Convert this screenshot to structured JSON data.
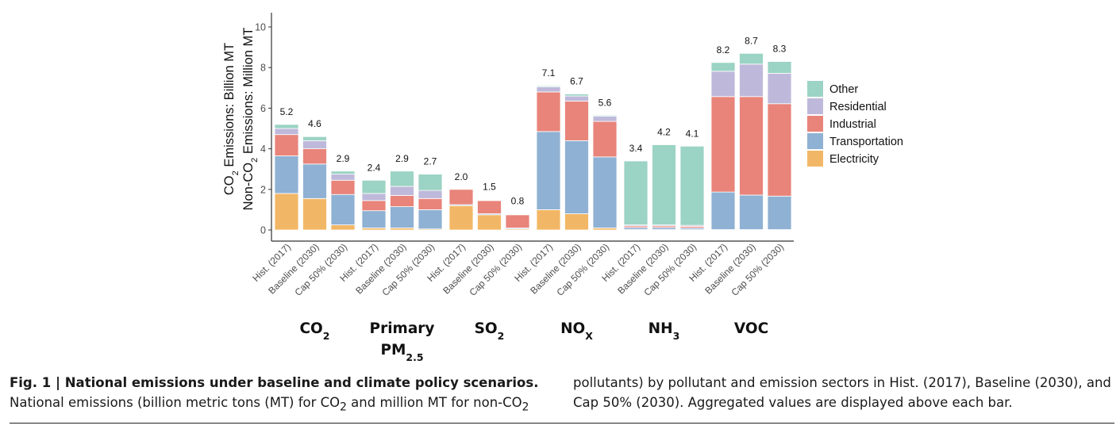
{
  "figure": {
    "label": "Fig. 1 | ",
    "title": "National emissions under baseline and climate policy scenarios.",
    "caption_part1": " National emissions (billion metric tons (MT) for CO",
    "caption_sub1": "2",
    "caption_part2": " and million MT for non-CO",
    "caption_sub2": "2",
    "caption_part3": " pollutants) by pollutant and emission sectors in Hist. (2017), Baseline (2030), and Cap 50% (2030). Aggregated values are displayed above each bar."
  },
  "chart_data": {
    "type": "bar",
    "stacked": true,
    "ylabel_line1": "CO2 Emissions: Billion MT",
    "ylabel_line2": "Non-CO2 Emissions: Million MT",
    "ylim": [
      0,
      10.5
    ],
    "yticks": [
      0,
      2,
      4,
      6,
      8,
      10
    ],
    "scenarios": [
      "Hist. (2017)",
      "Baseline (2030)",
      "Cap 50% (2030)"
    ],
    "colors": {
      "Electricity": "#F2B766",
      "Transportation": "#8FB1D3",
      "Industrial": "#E8847A",
      "Residential": "#BEB9DA",
      "Other": "#9BD3C4"
    },
    "legend": [
      "Other",
      "Residential",
      "Industrial",
      "Transportation",
      "Electricity"
    ],
    "legend_position": "right",
    "grid": false,
    "groups": [
      {
        "pollutant": "CO2",
        "label_main": "CO",
        "label_sub": "2",
        "label_line2": "",
        "label_line2_sub": "",
        "bars": [
          {
            "total": "5.2",
            "Electricity": 1.8,
            "Transportation": 1.85,
            "Industrial": 1.05,
            "Residential": 0.3,
            "Other": 0.2
          },
          {
            "total": "4.6",
            "Electricity": 1.55,
            "Transportation": 1.7,
            "Industrial": 0.75,
            "Residential": 0.4,
            "Other": 0.2
          },
          {
            "total": "2.9",
            "Electricity": 0.25,
            "Transportation": 1.5,
            "Industrial": 0.7,
            "Residential": 0.3,
            "Other": 0.15
          }
        ]
      },
      {
        "pollutant": "Primary PM2.5",
        "label_main": "Primary",
        "label_sub": "",
        "label_line2": "PM",
        "label_line2_sub": "2.5",
        "bars": [
          {
            "total": "2.4",
            "Electricity": 0.1,
            "Transportation": 0.85,
            "Industrial": 0.5,
            "Residential": 0.35,
            "Other": 0.65
          },
          {
            "total": "2.9",
            "Electricity": 0.1,
            "Transportation": 1.05,
            "Industrial": 0.55,
            "Residential": 0.45,
            "Other": 0.75
          },
          {
            "total": "2.7",
            "Electricity": 0.05,
            "Transportation": 0.95,
            "Industrial": 0.55,
            "Residential": 0.4,
            "Other": 0.8
          }
        ]
      },
      {
        "pollutant": "SO2",
        "label_main": "SO",
        "label_sub": "2",
        "label_line2": "",
        "label_line2_sub": "",
        "bars": [
          {
            "total": "2.0",
            "Electricity": 1.2,
            "Transportation": 0.05,
            "Industrial": 0.75,
            "Residential": 0.0,
            "Other": 0.0
          },
          {
            "total": "1.5",
            "Electricity": 0.75,
            "Transportation": 0.05,
            "Industrial": 0.65,
            "Residential": 0.02,
            "Other": 0.03
          },
          {
            "total": "0.8",
            "Electricity": 0.05,
            "Transportation": 0.05,
            "Industrial": 0.65,
            "Residential": 0.02,
            "Other": 0.03
          }
        ]
      },
      {
        "pollutant": "NOX",
        "label_main": "NO",
        "label_sub": "X",
        "label_line2": "",
        "label_line2_sub": "",
        "bars": [
          {
            "total": "7.1",
            "Electricity": 1.0,
            "Transportation": 3.85,
            "Industrial": 1.95,
            "Residential": 0.25,
            "Other": 0.05
          },
          {
            "total": "6.7",
            "Electricity": 0.8,
            "Transportation": 3.6,
            "Industrial": 1.95,
            "Residential": 0.25,
            "Other": 0.1
          },
          {
            "total": "5.6",
            "Electricity": 0.1,
            "Transportation": 3.5,
            "Industrial": 1.75,
            "Residential": 0.25,
            "Other": 0.05
          }
        ]
      },
      {
        "pollutant": "NH3",
        "label_main": "NH",
        "label_sub": "3",
        "label_line2": "",
        "label_line2_sub": "",
        "bars": [
          {
            "total": "3.4",
            "Electricity": 0.02,
            "Transportation": 0.1,
            "Industrial": 0.08,
            "Residential": 0.05,
            "Other": 3.15
          },
          {
            "total": "4.2",
            "Electricity": 0.02,
            "Transportation": 0.1,
            "Industrial": 0.08,
            "Residential": 0.05,
            "Other": 3.95
          },
          {
            "total": "4.1",
            "Electricity": 0.02,
            "Transportation": 0.08,
            "Industrial": 0.08,
            "Residential": 0.05,
            "Other": 3.9
          }
        ]
      },
      {
        "pollutant": "VOC",
        "label_main": "VOC",
        "label_sub": "",
        "label_line2": "",
        "label_line2_sub": "",
        "bars": [
          {
            "total": "8.2",
            "Electricity": 0.02,
            "Transportation": 1.85,
            "Industrial": 4.7,
            "Residential": 1.25,
            "Other": 0.43
          },
          {
            "total": "8.7",
            "Electricity": 0.02,
            "Transportation": 1.7,
            "Industrial": 4.85,
            "Residential": 1.6,
            "Other": 0.53
          },
          {
            "total": "8.3",
            "Electricity": 0.02,
            "Transportation": 1.65,
            "Industrial": 4.55,
            "Residential": 1.5,
            "Other": 0.58
          }
        ]
      }
    ]
  }
}
